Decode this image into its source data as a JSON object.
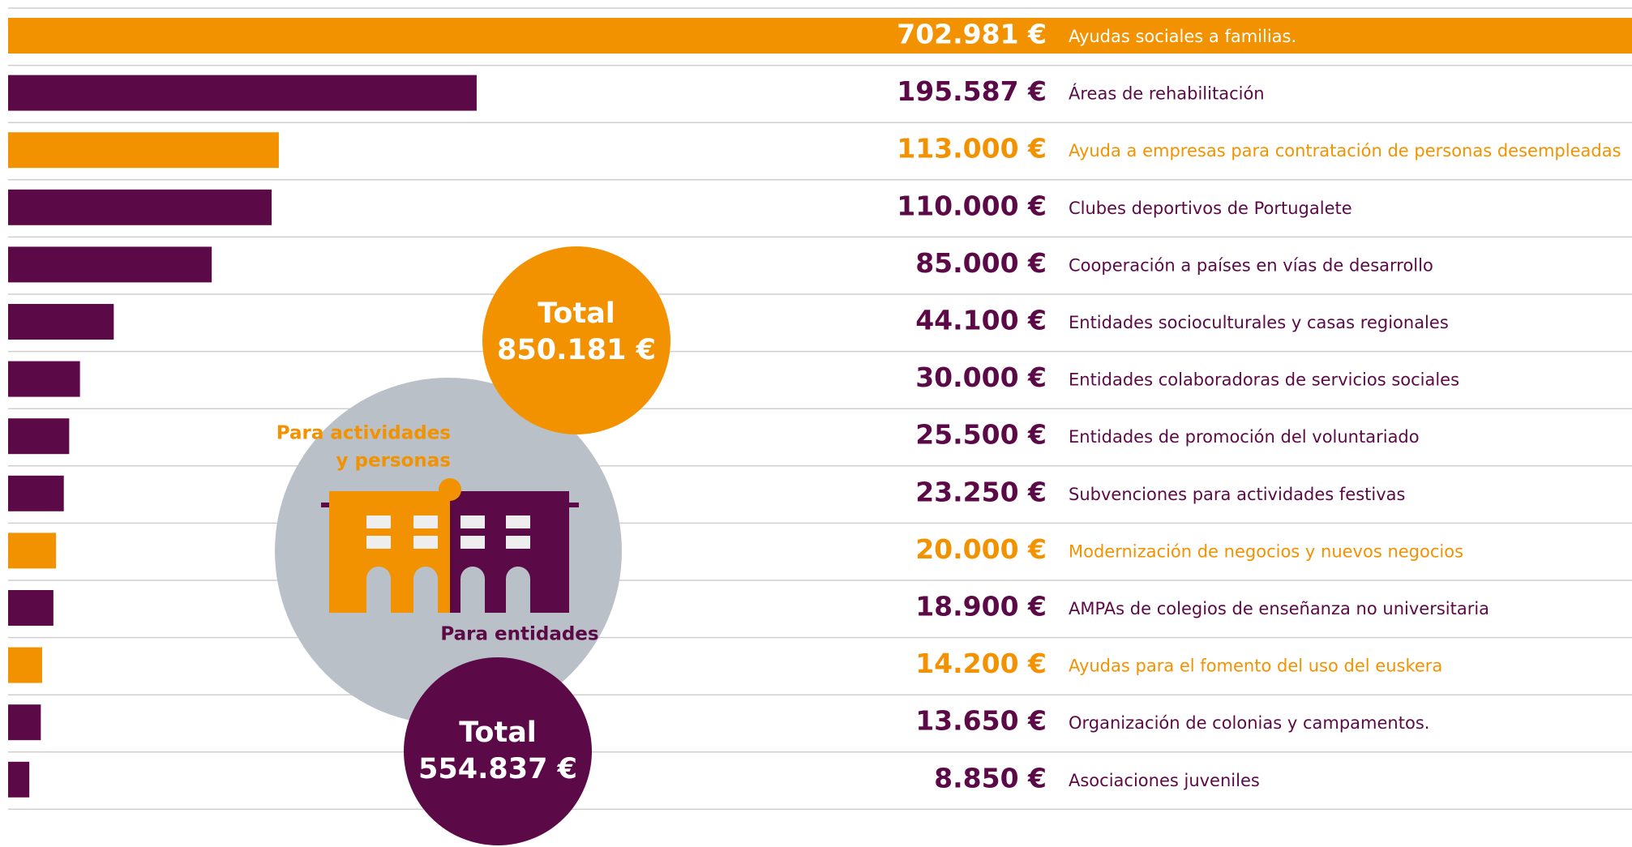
{
  "chart_data": {
    "type": "bar",
    "categories": [
      "Ayudas sociales a familias.",
      "Áreas de rehabilitación",
      "Ayuda a empresas para contratación de personas desempleadas",
      "Clubes deportivos de Portugalete",
      "Cooperación a países en vías de desarrollo",
      "Entidades socioculturales y casas regionales",
      "Entidades colaboradoras de servicios sociales",
      "Entidades de promoción del voluntariado",
      "Subvenciones para actividades festivas",
      "Modernización de negocios y nuevos negocios",
      "AMPAs de colegios de enseñanza no universitaria",
      "Ayudas para el fomento del uso del euskera",
      "Organización de colonias y campamentos.",
      "Asociaciones juveniles"
    ],
    "values": [
      702981,
      195587,
      113000,
      110000,
      85000,
      44100,
      30000,
      25500,
      23250,
      20000,
      18900,
      14200,
      13650,
      8850
    ],
    "value_labels": [
      "702.981 €",
      "195.587 €",
      "113.000 €",
      "110.000 €",
      "85.000 €",
      "44.100 €",
      "30.000 €",
      "25.500 €",
      "23.250 €",
      "20.000 €",
      "18.900 €",
      "14.200 €",
      "13.650 €",
      "8.850 €"
    ],
    "colors": [
      "#f39200",
      "#5c0a47",
      "#f39200",
      "#5c0a47",
      "#5c0a47",
      "#5c0a47",
      "#5c0a47",
      "#5c0a47",
      "#5c0a47",
      "#f39200",
      "#5c0a47",
      "#f39200",
      "#5c0a47",
      "#5c0a47"
    ],
    "annotations": {
      "orange_total": {
        "title": "Total",
        "value": 850181,
        "label": "850.181 €"
      },
      "purple_total": {
        "title": "Total",
        "value": 554837,
        "label": "554.837 €"
      },
      "orange_caption": [
        "Para actividades",
        "y personas"
      ],
      "purple_caption": "Para entidades"
    }
  }
}
